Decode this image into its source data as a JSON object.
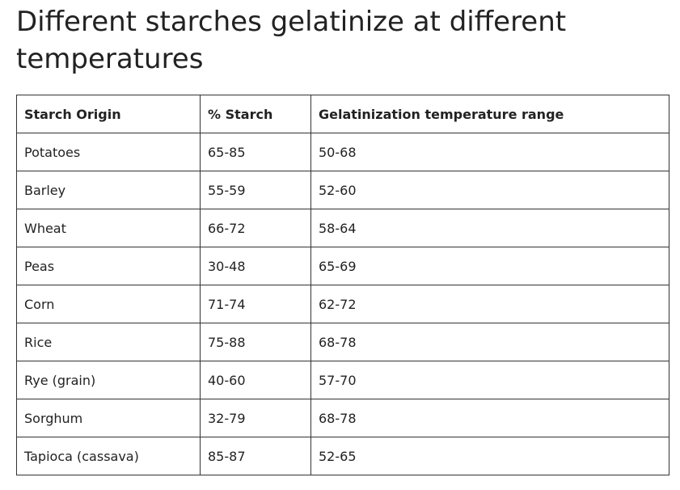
{
  "title": "Different starches gelatinize at different temperatures",
  "table": {
    "headers": [
      "Starch Origin",
      "% Starch",
      "Gelatinization temperature range"
    ],
    "rows": [
      [
        "Potatoes",
        "65-85",
        "50-68"
      ],
      [
        "Barley",
        "55-59",
        "52-60"
      ],
      [
        "Wheat",
        "66-72",
        "58-64"
      ],
      [
        "Peas",
        "30-48",
        "65-69"
      ],
      [
        "Corn",
        "71-74",
        "62-72"
      ],
      [
        "Rice",
        "75-88",
        "68-78"
      ],
      [
        "Rye (grain)",
        "40-60",
        "57-70"
      ],
      [
        "Sorghum",
        "32-79",
        "68-78"
      ],
      [
        "Tapioca (cassava)",
        "85-87",
        "52-65"
      ]
    ]
  }
}
